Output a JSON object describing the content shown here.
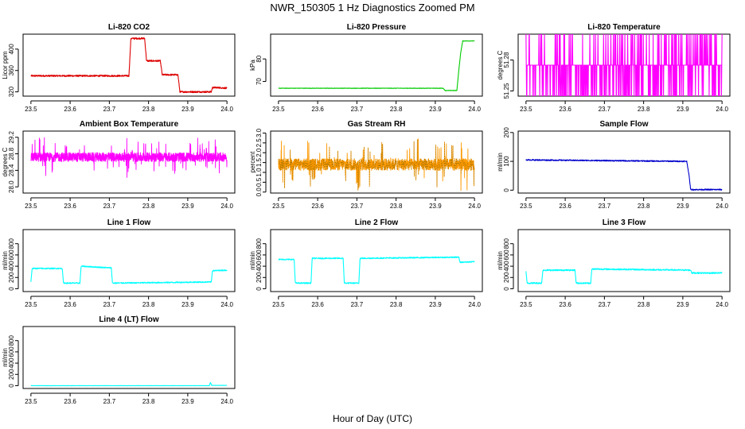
{
  "figure": {
    "title": "NWR_150305  1 Hz Diagnostics Zoomed PM",
    "xlabel": "Hour of Day (UTC)"
  },
  "chart_data": [
    {
      "type": "line",
      "title": "Li-820 CO2",
      "ylabel": "Licor ppm",
      "color": "#dd0000",
      "xlim": [
        23.48,
        24.02
      ],
      "ylim": [
        312,
        428
      ],
      "xticks": [
        23.5,
        23.6,
        23.7,
        23.8,
        23.9,
        24.0
      ],
      "xtick_labels": [
        "23.5",
        "23.6",
        "23.7",
        "23.8",
        "23.9",
        "24.0"
      ],
      "yticks": [
        320,
        360,
        400
      ],
      "ytick_labels": [
        "320",
        "360",
        "400"
      ],
      "series": [
        {
          "name": "CO2",
          "noise": 1.5,
          "x": [
            23.5,
            23.75,
            23.755,
            23.79,
            23.795,
            23.83,
            23.835,
            23.875,
            23.88,
            23.96,
            23.963,
            23.97,
            23.975,
            24.0
          ],
          "y": [
            350,
            350,
            420,
            420,
            378,
            378,
            352,
            352,
            320,
            320,
            328,
            328,
            328,
            327
          ]
        }
      ]
    },
    {
      "type": "line",
      "title": "Li-820 Pressure",
      "ylabel": "kPa",
      "color": "#00cc00",
      "xlim": [
        23.48,
        24.02
      ],
      "ylim": [
        63.5,
        91
      ],
      "xticks": [
        23.5,
        23.6,
        23.7,
        23.8,
        23.9,
        24.0
      ],
      "xtick_labels": [
        "23.5",
        "23.6",
        "23.7",
        "23.8",
        "23.9",
        "24.0"
      ],
      "yticks": [
        70,
        80
      ],
      "ytick_labels": [
        "70",
        "80"
      ],
      "series": [
        {
          "name": "Pressure",
          "noise": 0.1,
          "x": [
            23.5,
            23.92,
            23.925,
            23.955,
            23.96,
            23.965,
            23.97,
            23.975,
            24.0
          ],
          "y": [
            67,
            67,
            66,
            66,
            75,
            83,
            88,
            88,
            88
          ]
        }
      ]
    },
    {
      "type": "line",
      "title": "Li-820 Temperature",
      "ylabel": "degrees C",
      "color": "#ff00ff",
      "xlim": [
        23.48,
        24.02
      ],
      "ylim": [
        51.245,
        51.305
      ],
      "xticks": [
        23.5,
        23.6,
        23.7,
        23.8,
        23.9,
        24.0
      ],
      "xtick_labels": [
        "23.5",
        "23.6",
        "23.7",
        "23.8",
        "23.9",
        "24.0"
      ],
      "yticks": [
        51.25,
        51.28
      ],
      "ytick_labels": [
        "51.25",
        "51.28"
      ],
      "series": [
        {
          "name": "Temperature",
          "mode": "digital",
          "levels": [
            51.245,
            51.275,
            51.305
          ],
          "x": [
            23.5,
            24.0
          ],
          "y": [
            51.275,
            51.275
          ]
        }
      ]
    },
    {
      "type": "line",
      "title": "Ambient Box Temperature",
      "ylabel": "degrees C",
      "color": "#ff00ff",
      "xlim": [
        23.48,
        24.02
      ],
      "ylim": [
        27.85,
        29.35
      ],
      "xticks": [
        23.5,
        23.6,
        23.7,
        23.8,
        23.9,
        24.0
      ],
      "xtick_labels": [
        "23.5",
        "23.6",
        "23.7",
        "23.8",
        "23.9",
        "24.0"
      ],
      "yticks": [
        28.0,
        28.4,
        28.8,
        29.2
      ],
      "ytick_labels": [
        "28.0",
        "28.4",
        "28.8",
        "29.2"
      ],
      "series": [
        {
          "name": "Ambient",
          "mode": "dense",
          "noise": 0.11,
          "spike_prob": 0.04,
          "spike_size": 0.4,
          "x": [
            23.5,
            24.0
          ],
          "y": [
            28.72,
            28.72
          ]
        }
      ]
    },
    {
      "type": "line",
      "title": "Gas Stream RH",
      "ylabel": "percent",
      "color": "#ff9900",
      "color2": "#806600",
      "xlim": [
        23.48,
        24.02
      ],
      "ylim": [
        -0.05,
        3.1
      ],
      "xticks": [
        23.5,
        23.6,
        23.7,
        23.8,
        23.9,
        24.0
      ],
      "xtick_labels": [
        "23.5",
        "23.6",
        "23.7",
        "23.8",
        "23.9",
        "24.0"
      ],
      "yticks": [
        0.0,
        0.5,
        1.0,
        1.5,
        2.0,
        2.5,
        3.0
      ],
      "ytick_labels": [
        "0.0",
        "0.5",
        "1.0",
        "1.5",
        "2.0",
        "2.5",
        "3.0"
      ],
      "series": [
        {
          "name": "RH",
          "mode": "dense",
          "noise": 0.3,
          "spike_prob": 0.05,
          "spike_size": 1.2,
          "x": [
            23.5,
            24.0
          ],
          "y": [
            1.4,
            1.4
          ]
        }
      ]
    },
    {
      "type": "line",
      "title": "Sample Flow",
      "ylabel": "ml/min",
      "color": "#0000cc",
      "xlim": [
        23.48,
        24.02
      ],
      "ylim": [
        -10,
        205
      ],
      "xticks": [
        23.5,
        23.6,
        23.7,
        23.8,
        23.9,
        24.0
      ],
      "xtick_labels": [
        "23.5",
        "23.6",
        "23.7",
        "23.8",
        "23.9",
        "24.0"
      ],
      "yticks": [
        0,
        100,
        200
      ],
      "ytick_labels": [
        "0",
        "100",
        "200"
      ],
      "series": [
        {
          "name": "Sample Flow",
          "noise": 2,
          "x": [
            23.5,
            23.91,
            23.915,
            23.92,
            24.0
          ],
          "y": [
            105,
            100,
            60,
            2,
            2
          ]
        }
      ]
    },
    {
      "type": "line",
      "title": "Line 1 Flow",
      "ylabel": "ml/min",
      "color": "#00ffff",
      "xlim": [
        23.48,
        24.02
      ],
      "ylim": [
        -50,
        1050
      ],
      "xticks": [
        23.5,
        23.6,
        23.7,
        23.8,
        23.9,
        24.0
      ],
      "xtick_labels": [
        "23.5",
        "23.6",
        "23.7",
        "23.8",
        "23.9",
        "24.0"
      ],
      "yticks": [
        0,
        200,
        400,
        600,
        800
      ],
      "ytick_labels": [
        "0",
        "200",
        "400",
        "600",
        "800"
      ],
      "series": [
        {
          "name": "Line 1",
          "noise": 10,
          "x": [
            23.5,
            23.503,
            23.58,
            23.583,
            23.625,
            23.628,
            23.705,
            23.708,
            23.96,
            23.963,
            24.0
          ],
          "y": [
            120,
            360,
            360,
            100,
            100,
            400,
            370,
            100,
            120,
            320,
            330
          ]
        }
      ]
    },
    {
      "type": "line",
      "title": "Line 2 Flow",
      "ylabel": "ml/min",
      "color": "#00ffff",
      "xlim": [
        23.48,
        24.02
      ],
      "ylim": [
        -50,
        1050
      ],
      "xticks": [
        23.5,
        23.6,
        23.7,
        23.8,
        23.9,
        24.0
      ],
      "xtick_labels": [
        "23.5",
        "23.6",
        "23.7",
        "23.8",
        "23.9",
        "24.0"
      ],
      "yticks": [
        0,
        200,
        400,
        600,
        800
      ],
      "ytick_labels": [
        "0",
        "200",
        "400",
        "600",
        "800"
      ],
      "series": [
        {
          "name": "Line 2",
          "noise": 10,
          "x": [
            23.5,
            23.54,
            23.543,
            23.583,
            23.586,
            23.665,
            23.668,
            23.705,
            23.708,
            23.96,
            23.963,
            24.0
          ],
          "y": [
            520,
            520,
            100,
            100,
            540,
            540,
            100,
            100,
            540,
            560,
            470,
            480
          ]
        }
      ]
    },
    {
      "type": "line",
      "title": "Line 3 Flow",
      "ylabel": "ml/min",
      "color": "#00ffff",
      "xlim": [
        23.48,
        24.02
      ],
      "ylim": [
        -50,
        1050
      ],
      "xticks": [
        23.5,
        23.6,
        23.7,
        23.8,
        23.9,
        24.0
      ],
      "xtick_labels": [
        "23.5",
        "23.6",
        "23.7",
        "23.8",
        "23.9",
        "24.0"
      ],
      "yticks": [
        0,
        200,
        400,
        600,
        800
      ],
      "ytick_labels": [
        "0",
        "200",
        "400",
        "600",
        "800"
      ],
      "series": [
        {
          "name": "Line 3",
          "noise": 12,
          "x": [
            23.5,
            23.503,
            23.54,
            23.543,
            23.625,
            23.628,
            23.665,
            23.668,
            23.92,
            23.923,
            24.0
          ],
          "y": [
            300,
            100,
            100,
            330,
            330,
            100,
            100,
            350,
            330,
            280,
            280
          ]
        }
      ]
    },
    {
      "type": "line",
      "title": "Line 4 (LT) Flow",
      "ylabel": "ml/min",
      "color": "#00ffff",
      "xlim": [
        23.48,
        24.02
      ],
      "ylim": [
        -50,
        1050
      ],
      "xticks": [
        23.5,
        23.6,
        23.7,
        23.8,
        23.9,
        24.0
      ],
      "xtick_labels": [
        "23.5",
        "23.6",
        "23.7",
        "23.8",
        "23.9",
        "24.0"
      ],
      "yticks": [
        0,
        200,
        400,
        600,
        800
      ],
      "ytick_labels": [
        "0",
        "200",
        "400",
        "600",
        "800"
      ],
      "series": [
        {
          "name": "Line 4",
          "noise": 2,
          "x": [
            23.5,
            23.955,
            23.958,
            23.961,
            24.0
          ],
          "y": [
            0,
            0,
            60,
            5,
            5
          ]
        }
      ]
    }
  ]
}
